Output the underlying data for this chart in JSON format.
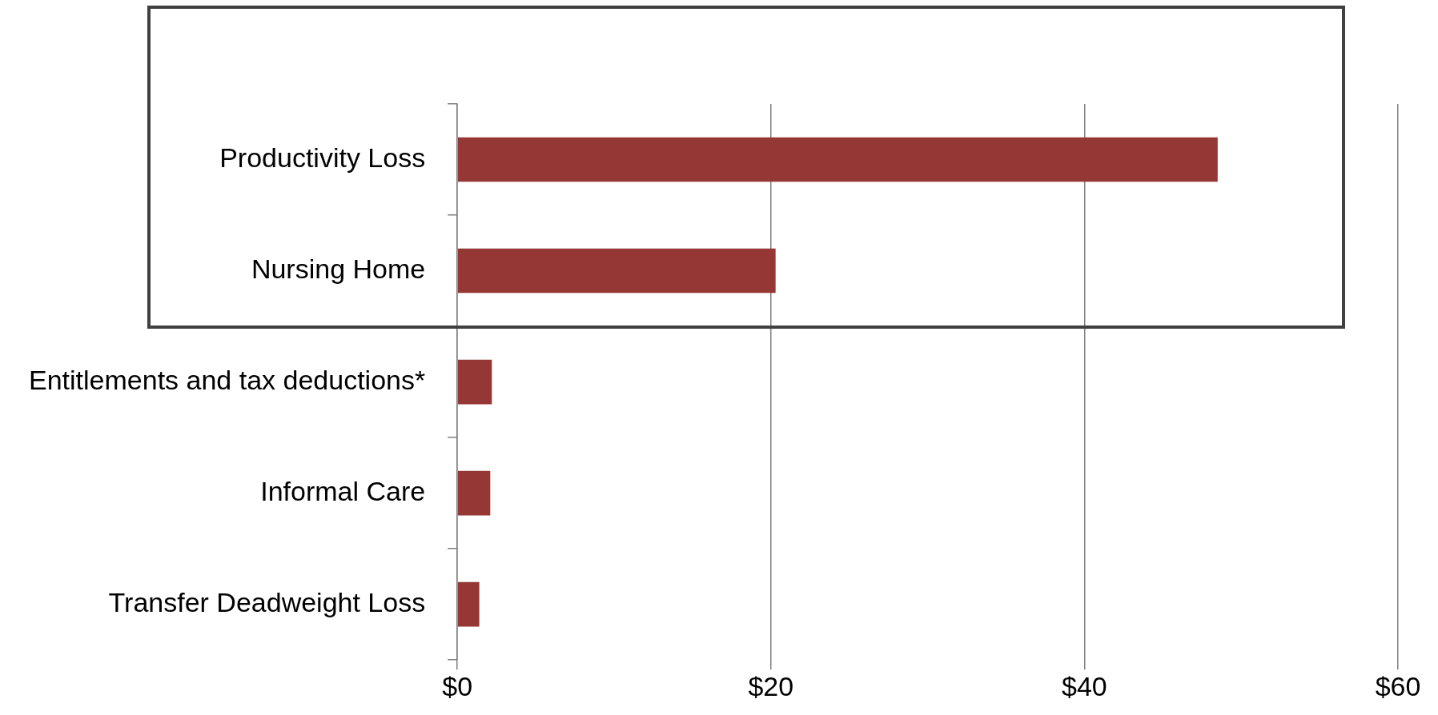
{
  "chart_data": {
    "type": "bar",
    "orientation": "horizontal",
    "categories": [
      "Productivity Loss",
      "Nursing Home",
      "Entitlements and tax deductions*",
      "Informal Care",
      "Transfer Deadweight Loss"
    ],
    "values": [
      48.5,
      20.3,
      2.2,
      2.1,
      1.4
    ],
    "color": "#953735",
    "xlim": [
      0,
      60
    ],
    "xticks": [
      {
        "value": 0,
        "label": "$0"
      },
      {
        "value": 20,
        "label": "$20"
      },
      {
        "value": 40,
        "label": "$40"
      },
      {
        "value": 60,
        "label": "$60"
      }
    ],
    "grid": "x"
  }
}
